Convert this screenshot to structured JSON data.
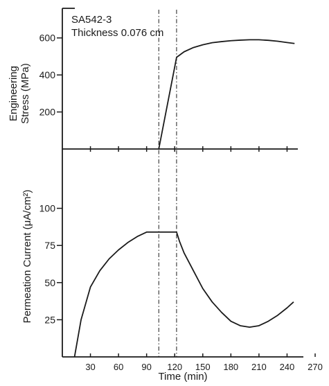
{
  "chart_data": [
    {
      "type": "line",
      "panel": "top",
      "annotation_line1": "SA542-3",
      "annotation_line2": "Thickness 0.076 cm",
      "ylabel_line1": "Engineering",
      "ylabel_line2": "Stress (MPa)",
      "ylim": [
        0,
        700
      ],
      "xlim": [
        0,
        270
      ],
      "yticks": [
        200,
        400,
        600
      ],
      "series": [
        {
          "x": [
            103,
            122,
            130,
            140,
            150,
            160,
            170,
            180,
            190,
            200,
            210,
            220,
            230,
            240,
            248
          ],
          "y": [
            0,
            495,
            525,
            548,
            563,
            574,
            580,
            585,
            588,
            590,
            590,
            587,
            582,
            575,
            570
          ]
        }
      ],
      "markers_x": [
        103,
        122
      ]
    },
    {
      "type": "line",
      "panel": "bottom",
      "xlabel": "Time (min)",
      "ylabel": "Permeation Current (μA/cm²)",
      "xlim": [
        0,
        270
      ],
      "ylim": [
        0,
        125
      ],
      "xticks": [
        30,
        60,
        90,
        120,
        150,
        180,
        210,
        240,
        270
      ],
      "yticks": [
        25,
        50,
        75,
        100
      ],
      "series": [
        {
          "x": [
            13,
            20,
            30,
            40,
            50,
            60,
            70,
            80,
            90,
            103,
            122,
            125,
            130,
            140,
            150,
            160,
            170,
            180,
            190,
            200,
            210,
            220,
            230,
            240,
            247
          ],
          "y": [
            0,
            25,
            47,
            58,
            66,
            72,
            77,
            81,
            84,
            84,
            84,
            78,
            70,
            58,
            46,
            37,
            30,
            24,
            21,
            20,
            21,
            24,
            28,
            33,
            37
          ]
        }
      ],
      "markers_x": [
        103,
        122
      ]
    }
  ]
}
